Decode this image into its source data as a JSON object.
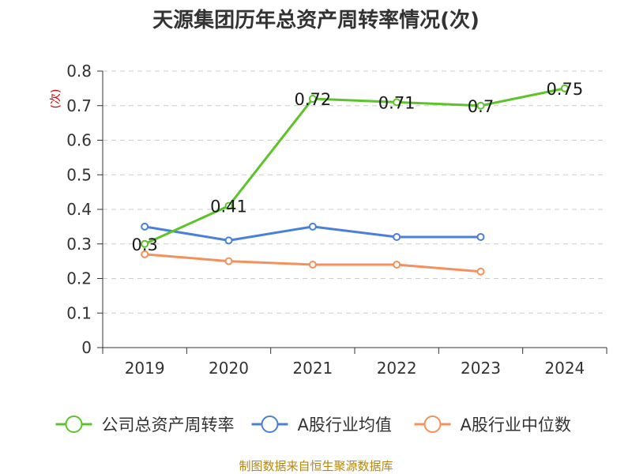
{
  "chart_data": {
    "type": "line",
    "title": "天源集团历年总资产周转率情况(次)",
    "ylabel": "(次)",
    "xlabel": "",
    "categories": [
      "2019",
      "2020",
      "2021",
      "2022",
      "2023",
      "2024"
    ],
    "ylim": [
      0,
      0.8
    ],
    "yticks": [
      "0",
      "0.1",
      "0.2",
      "0.3",
      "0.4",
      "0.5",
      "0.6",
      "0.7",
      "0.8"
    ],
    "grid": true,
    "legend_position": "bottom",
    "series": [
      {
        "name": "公司总资产周转率",
        "color": "#5cc42a",
        "values": [
          0.3,
          0.41,
          0.72,
          0.71,
          0.7,
          0.75
        ],
        "labels": [
          "0.3",
          "0.41",
          "0.72",
          "0.71",
          "0.7",
          "0.75"
        ]
      },
      {
        "name": "A股行业均值",
        "color": "#4a7fdb",
        "values": [
          0.35,
          0.31,
          0.35,
          0.32,
          0.32,
          null
        ]
      },
      {
        "name": "A股行业中位数",
        "color": "#f5905a",
        "values": [
          0.27,
          0.25,
          0.24,
          0.24,
          0.22,
          null
        ]
      }
    ]
  },
  "source": "制图数据来自恒生聚源数据库"
}
